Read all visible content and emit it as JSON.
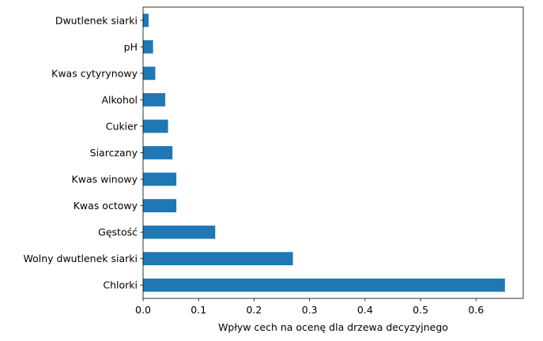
{
  "chart_data": {
    "type": "bar",
    "orientation": "horizontal",
    "categories": [
      "Chlorki",
      "Wolny dwutlenek siarki",
      "Gęstość",
      "Kwas octowy",
      "Kwas winowy",
      "Siarczany",
      "Cukier",
      "Alkohol",
      "Kwas cytyrynowy",
      "pH",
      "Dwutlenek siarki"
    ],
    "values": [
      0.652,
      0.27,
      0.13,
      0.06,
      0.06,
      0.053,
      0.045,
      0.04,
      0.022,
      0.018,
      0.01
    ],
    "xlabel": "Wpływ cech na ocenę dla drzewa decyzyjnego",
    "ylabel": "",
    "xlim": [
      0,
      0.685
    ],
    "xticks": [
      "0.0",
      "0.1",
      "0.2",
      "0.3",
      "0.4",
      "0.5",
      "0.6"
    ],
    "bar_color": "#1f77b4",
    "grid": false
  }
}
